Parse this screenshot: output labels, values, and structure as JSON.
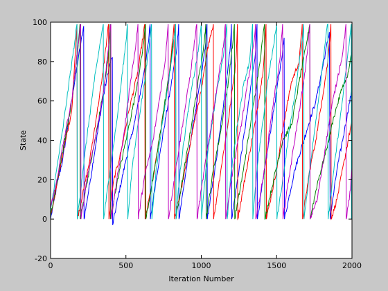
{
  "chart_data": {
    "type": "line",
    "title": "",
    "xlabel": "Iteration Number",
    "ylabel": "State",
    "xlim": [
      0,
      2000
    ],
    "ylim": [
      -20,
      100
    ],
    "xticks": [
      0,
      500,
      1000,
      1500,
      2000
    ],
    "yticks": [
      -20,
      0,
      20,
      40,
      60,
      80,
      100
    ],
    "grid": false,
    "legend": "none",
    "background_color": "#c8c8c8",
    "axes_color": "#ffffff",
    "series": [
      {
        "color": "#0000ff",
        "points": [
          [
            0,
            0
          ],
          [
            25,
            10
          ],
          [
            50,
            20
          ],
          [
            80,
            30
          ],
          [
            110,
            45
          ],
          [
            150,
            65
          ],
          [
            185,
            82
          ],
          [
            220,
            98
          ],
          [
            222,
            0
          ],
          [
            260,
            18
          ],
          [
            300,
            38
          ],
          [
            340,
            58
          ],
          [
            390,
            78
          ],
          [
            410,
            82
          ],
          [
            412,
            -3
          ],
          [
            450,
            12
          ],
          [
            500,
            30
          ],
          [
            560,
            50
          ],
          [
            610,
            70
          ],
          [
            650,
            90
          ],
          [
            660,
            99
          ],
          [
            662,
            0
          ],
          [
            700,
            20
          ],
          [
            750,
            45
          ],
          [
            800,
            68
          ],
          [
            840,
            88
          ],
          [
            850,
            99
          ],
          [
            852,
            0
          ],
          [
            900,
            25
          ],
          [
            950,
            50
          ],
          [
            1000,
            72
          ],
          [
            1030,
            90
          ],
          [
            1038,
            99
          ],
          [
            1040,
            0
          ],
          [
            1100,
            30
          ],
          [
            1150,
            60
          ],
          [
            1190,
            85
          ],
          [
            1200,
            99
          ],
          [
            1202,
            0
          ],
          [
            1260,
            30
          ],
          [
            1320,
            62
          ],
          [
            1360,
            85
          ],
          [
            1370,
            99
          ],
          [
            1372,
            0
          ],
          [
            1430,
            30
          ],
          [
            1480,
            55
          ],
          [
            1530,
            80
          ],
          [
            1550,
            92
          ],
          [
            1552,
            0
          ],
          [
            1620,
            25
          ],
          [
            1700,
            45
          ],
          [
            1760,
            60
          ],
          [
            1800,
            75
          ],
          [
            1850,
            95
          ],
          [
            1855,
            0
          ],
          [
            1900,
            25
          ],
          [
            1950,
            45
          ],
          [
            2000,
            66
          ]
        ]
      },
      {
        "color": "#ff0000",
        "points": [
          [
            0,
            2
          ],
          [
            30,
            12
          ],
          [
            60,
            25
          ],
          [
            100,
            40
          ],
          [
            140,
            55
          ],
          [
            165,
            85
          ],
          [
            175,
            99
          ],
          [
            177,
            0
          ],
          [
            220,
            15
          ],
          [
            260,
            30
          ],
          [
            300,
            50
          ],
          [
            340,
            70
          ],
          [
            385,
            99
          ],
          [
            387,
            0
          ],
          [
            420,
            20
          ],
          [
            470,
            35
          ],
          [
            520,
            55
          ],
          [
            580,
            75
          ],
          [
            625,
            99
          ],
          [
            627,
            0
          ],
          [
            680,
            20
          ],
          [
            730,
            45
          ],
          [
            780,
            68
          ],
          [
            820,
            99
          ],
          [
            822,
            0
          ],
          [
            880,
            20
          ],
          [
            950,
            48
          ],
          [
            1000,
            65
          ],
          [
            1050,
            90
          ],
          [
            1080,
            99
          ],
          [
            1082,
            0
          ],
          [
            1130,
            25
          ],
          [
            1180,
            50
          ],
          [
            1230,
            80
          ],
          [
            1240,
            99
          ],
          [
            1242,
            0
          ],
          [
            1300,
            25
          ],
          [
            1360,
            50
          ],
          [
            1410,
            75
          ],
          [
            1430,
            99
          ],
          [
            1432,
            0
          ],
          [
            1500,
            25
          ],
          [
            1550,
            50
          ],
          [
            1600,
            70
          ],
          [
            1650,
            80
          ],
          [
            1670,
            99
          ],
          [
            1672,
            0
          ],
          [
            1720,
            25
          ],
          [
            1760,
            40
          ],
          [
            1800,
            60
          ],
          [
            1840,
            80
          ],
          [
            1860,
            99
          ],
          [
            1862,
            0
          ],
          [
            1900,
            10
          ],
          [
            1950,
            30
          ],
          [
            2000,
            50
          ]
        ]
      },
      {
        "color": "#008000",
        "points": [
          [
            0,
            1
          ],
          [
            40,
            18
          ],
          [
            90,
            38
          ],
          [
            140,
            60
          ],
          [
            180,
            85
          ],
          [
            195,
            99
          ],
          [
            197,
            0
          ],
          [
            240,
            18
          ],
          [
            290,
            38
          ],
          [
            340,
            60
          ],
          [
            380,
            80
          ],
          [
            395,
            99
          ],
          [
            397,
            0
          ],
          [
            440,
            18
          ],
          [
            500,
            40
          ],
          [
            560,
            62
          ],
          [
            610,
            85
          ],
          [
            630,
            99
          ],
          [
            632,
            0
          ],
          [
            690,
            25
          ],
          [
            740,
            50
          ],
          [
            790,
            75
          ],
          [
            830,
            99
          ],
          [
            832,
            0
          ],
          [
            880,
            22
          ],
          [
            940,
            50
          ],
          [
            990,
            75
          ],
          [
            1020,
            90
          ],
          [
            1030,
            99
          ],
          [
            1032,
            0
          ],
          [
            1080,
            25
          ],
          [
            1130,
            45
          ],
          [
            1180,
            70
          ],
          [
            1210,
            90
          ],
          [
            1220,
            99
          ],
          [
            1222,
            0
          ],
          [
            1280,
            25
          ],
          [
            1330,
            50
          ],
          [
            1380,
            75
          ],
          [
            1420,
            99
          ],
          [
            1422,
            0
          ],
          [
            1480,
            20
          ],
          [
            1540,
            40
          ],
          [
            1600,
            48
          ],
          [
            1650,
            70
          ],
          [
            1700,
            90
          ],
          [
            1720,
            99
          ],
          [
            1722,
            0
          ],
          [
            1770,
            18
          ],
          [
            1830,
            35
          ],
          [
            1880,
            52
          ],
          [
            1940,
            68
          ],
          [
            1970,
            72
          ],
          [
            2000,
            85
          ]
        ]
      },
      {
        "color": "#00bfbf",
        "points": [
          [
            0,
            4
          ],
          [
            40,
            25
          ],
          [
            80,
            45
          ],
          [
            120,
            68
          ],
          [
            160,
            90
          ],
          [
            175,
            99
          ],
          [
            177,
            0
          ],
          [
            215,
            25
          ],
          [
            255,
            50
          ],
          [
            290,
            70
          ],
          [
            330,
            90
          ],
          [
            350,
            99
          ],
          [
            352,
            0
          ],
          [
            395,
            25
          ],
          [
            440,
            50
          ],
          [
            470,
            70
          ],
          [
            500,
            90
          ],
          [
            510,
            99
          ],
          [
            512,
            0
          ],
          [
            540,
            25
          ],
          [
            580,
            48
          ],
          [
            620,
            68
          ],
          [
            650,
            85
          ],
          [
            670,
            99
          ],
          [
            672,
            0
          ],
          [
            700,
            25
          ],
          [
            740,
            48
          ],
          [
            780,
            68
          ],
          [
            810,
            85
          ],
          [
            830,
            99
          ],
          [
            832,
            0
          ],
          [
            860,
            25
          ],
          [
            900,
            48
          ],
          [
            940,
            68
          ],
          [
            980,
            85
          ],
          [
            1000,
            99
          ],
          [
            1002,
            0
          ],
          [
            1030,
            25
          ],
          [
            1070,
            48
          ],
          [
            1110,
            68
          ],
          [
            1150,
            85
          ],
          [
            1170,
            99
          ],
          [
            1172,
            0
          ],
          [
            1200,
            25
          ],
          [
            1240,
            48
          ],
          [
            1280,
            68
          ],
          [
            1320,
            80
          ],
          [
            1340,
            99
          ],
          [
            1342,
            0
          ],
          [
            1370,
            25
          ],
          [
            1410,
            50
          ],
          [
            1440,
            70
          ],
          [
            1480,
            88
          ],
          [
            1500,
            99
          ],
          [
            1502,
            0
          ],
          [
            1550,
            25
          ],
          [
            1590,
            48
          ],
          [
            1630,
            68
          ],
          [
            1660,
            85
          ],
          [
            1680,
            99
          ],
          [
            1682,
            0
          ],
          [
            1720,
            25
          ],
          [
            1760,
            50
          ],
          [
            1800,
            75
          ],
          [
            1830,
            95
          ],
          [
            1840,
            99
          ],
          [
            1842,
            0
          ],
          [
            1880,
            25
          ],
          [
            1920,
            50
          ],
          [
            1960,
            75
          ],
          [
            1990,
            95
          ],
          [
            1995,
            99
          ],
          [
            1997,
            0
          ]
        ]
      },
      {
        "color": "#bf00bf",
        "points": [
          [
            0,
            6
          ],
          [
            30,
            15
          ],
          [
            60,
            28
          ],
          [
            100,
            45
          ],
          [
            140,
            60
          ],
          [
            170,
            80
          ],
          [
            200,
            99
          ],
          [
            202,
            0
          ],
          [
            240,
            20
          ],
          [
            280,
            35
          ],
          [
            320,
            50
          ],
          [
            360,
            70
          ],
          [
            400,
            99
          ],
          [
            402,
            0
          ],
          [
            440,
            20
          ],
          [
            490,
            45
          ],
          [
            530,
            70
          ],
          [
            560,
            85
          ],
          [
            580,
            99
          ],
          [
            582,
            0
          ],
          [
            620,
            20
          ],
          [
            680,
            40
          ],
          [
            720,
            60
          ],
          [
            760,
            80
          ],
          [
            780,
            99
          ],
          [
            782,
            0
          ],
          [
            830,
            25
          ],
          [
            880,
            50
          ],
          [
            930,
            75
          ],
          [
            970,
            99
          ],
          [
            972,
            0
          ],
          [
            1020,
            25
          ],
          [
            1080,
            55
          ],
          [
            1120,
            75
          ],
          [
            1150,
            90
          ],
          [
            1160,
            99
          ],
          [
            1162,
            0
          ],
          [
            1210,
            25
          ],
          [
            1270,
            50
          ],
          [
            1320,
            75
          ],
          [
            1350,
            90
          ],
          [
            1360,
            99
          ],
          [
            1362,
            0
          ],
          [
            1420,
            25
          ],
          [
            1470,
            55
          ],
          [
            1520,
            80
          ],
          [
            1540,
            99
          ],
          [
            1542,
            0
          ],
          [
            1590,
            25
          ],
          [
            1640,
            50
          ],
          [
            1690,
            75
          ],
          [
            1710,
            90
          ],
          [
            1720,
            99
          ],
          [
            1722,
            0
          ],
          [
            1770,
            10
          ],
          [
            1820,
            35
          ],
          [
            1860,
            55
          ],
          [
            1900,
            70
          ],
          [
            1940,
            85
          ],
          [
            1960,
            99
          ],
          [
            1962,
            0
          ],
          [
            1990,
            15
          ],
          [
            2000,
            26
          ]
        ]
      }
    ]
  }
}
